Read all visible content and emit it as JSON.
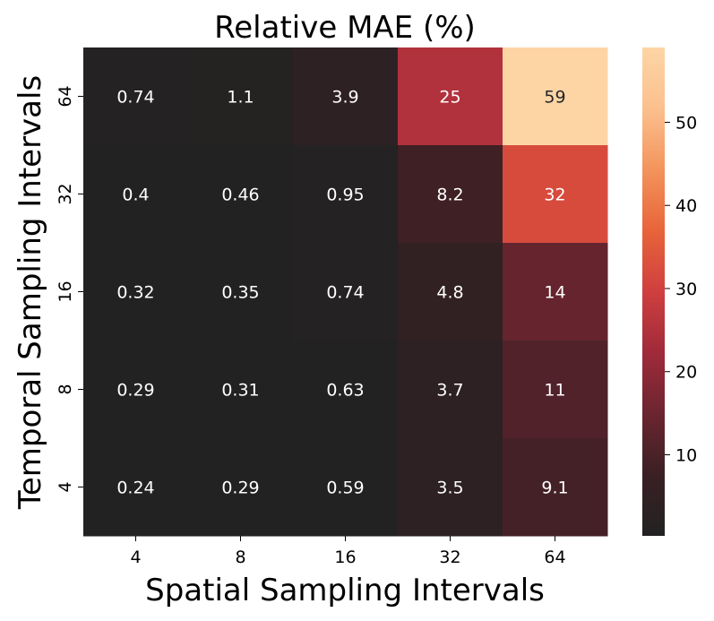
{
  "chart_data": {
    "type": "heatmap",
    "title": "Relative MAE (%)",
    "xlabel": "Spatial Sampling Intervals",
    "ylabel": "Temporal Sampling Intervals",
    "x_categories": [
      "4",
      "8",
      "16",
      "32",
      "64"
    ],
    "y_categories": [
      "64",
      "32",
      "16",
      "8",
      "4"
    ],
    "values": [
      [
        0.74,
        1.1,
        3.9,
        25,
        59
      ],
      [
        0.4,
        0.46,
        0.95,
        8.2,
        32
      ],
      [
        0.32,
        0.35,
        0.74,
        4.8,
        14
      ],
      [
        0.29,
        0.31,
        0.63,
        3.7,
        11
      ],
      [
        0.24,
        0.29,
        0.59,
        3.5,
        9.1
      ]
    ],
    "value_labels": [
      [
        "0.74",
        "1.1",
        "3.9",
        "25",
        "59"
      ],
      [
        "0.4",
        "0.46",
        "0.95",
        "8.2",
        "32"
      ],
      [
        "0.32",
        "0.35",
        "0.74",
        "4.8",
        "14"
      ],
      [
        "0.29",
        "0.31",
        "0.63",
        "3.7",
        "11"
      ],
      [
        "0.24",
        "0.29",
        "0.59",
        "3.5",
        "9.1"
      ]
    ],
    "colorbar": {
      "range": [
        0.24,
        59
      ],
      "ticks": [
        10,
        20,
        30,
        40,
        50
      ],
      "tick_labels": [
        "10",
        "20",
        "30",
        "40",
        "50"
      ]
    },
    "colormap_stops": [
      "#222222",
      "#3a2024",
      "#6b2530",
      "#a02a3a",
      "#cf3f3f",
      "#e8643a",
      "#f3945c",
      "#fbc08e",
      "#fdd5a5"
    ]
  }
}
